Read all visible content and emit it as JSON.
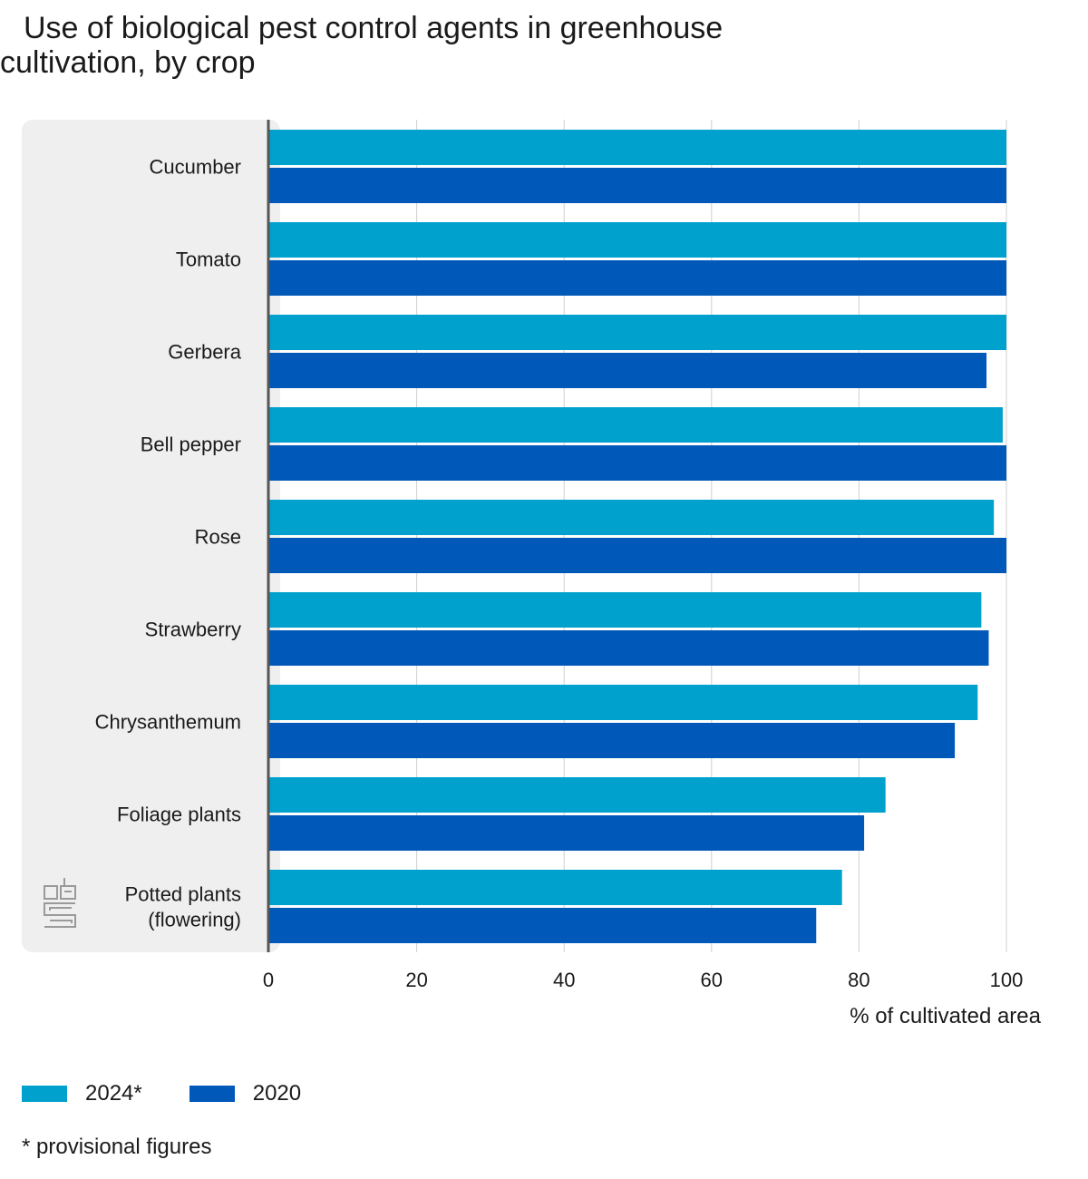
{
  "title_line1": "Use of biological pest control agents in greenhouse",
  "title_line2": "cultivation, by crop",
  "footnote": "* provisional figures",
  "colors": {
    "series_2024": "#00a1cd",
    "series_2020": "#0058b8",
    "panel": "#efefef",
    "grid": "#cfcfcf",
    "axis": "#555555"
  },
  "chart_data": {
    "type": "bar",
    "orientation": "horizontal",
    "title": "Use of biological pest control agents in greenhouse cultivation, by crop",
    "xlabel": "% of cultivated area",
    "ylabel": "",
    "xlim": [
      0,
      100
    ],
    "xticks": [
      "0",
      "20",
      "40",
      "60",
      "80",
      "100"
    ],
    "grid": true,
    "legend_position": "bottom-left",
    "categories": [
      [
        "Cucumber"
      ],
      [
        "Tomato"
      ],
      [
        "Gerbera"
      ],
      [
        "Bell pepper"
      ],
      [
        "Rose"
      ],
      [
        "Strawberry"
      ],
      [
        "Chrysanthemum"
      ],
      [
        "Foliage plants"
      ],
      [
        "Potted plants",
        "(flowering)"
      ]
    ],
    "series": [
      {
        "name": "2024*",
        "values": [
          100,
          100,
          100,
          99.5,
          98.3,
          96.6,
          96.1,
          83.6,
          77.7
        ]
      },
      {
        "name": "2020",
        "values": [
          100,
          100,
          97.3,
          100,
          100,
          97.6,
          93.0,
          80.7,
          74.2
        ]
      }
    ]
  }
}
